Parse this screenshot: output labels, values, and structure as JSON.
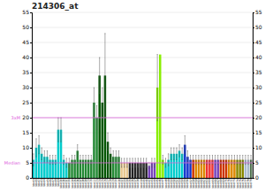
{
  "chart_data": {
    "type": "bar",
    "title": "214306_at",
    "categories": [
      "label0",
      "label1",
      "label2",
      "label3",
      "label4",
      "label5",
      "label6",
      "label7",
      "label8",
      "label9",
      "label10",
      "label11",
      "label12",
      "label13",
      "label14",
      "label15",
      "label16",
      "label17",
      "label18",
      "label19",
      "label20",
      "label21",
      "label22",
      "label23",
      "label24",
      "label25",
      "label26",
      "label27",
      "label28",
      "label29",
      "label30",
      "label31",
      "label32",
      "label33",
      "label34",
      "label35",
      "label36",
      "label37",
      "label38",
      "label39",
      "label40",
      "label41",
      "label42",
      "label43",
      "label44",
      "label45",
      "label46",
      "label47",
      "label48",
      "label49",
      "label50",
      "label51",
      "label52",
      "label53",
      "label54",
      "label55",
      "label56",
      "label57",
      "label58",
      "label59",
      "label60",
      "label61",
      "label62",
      "label63",
      "label64",
      "label65",
      "label66",
      "label67",
      "label68",
      "label69",
      "label70",
      "label71",
      "label72",
      "label73",
      "label74",
      "label75",
      "label76",
      "label77",
      "label78",
      "label79"
    ],
    "values": [
      6,
      10,
      11,
      8,
      7,
      7,
      6,
      6,
      6,
      16,
      16,
      6,
      5,
      5,
      6,
      6,
      9,
      6,
      6,
      6,
      6,
      6,
      25,
      20,
      34,
      25,
      34,
      12,
      8,
      7,
      7,
      7,
      5,
      5,
      5,
      5,
      5,
      5,
      5,
      5,
      5,
      5,
      4,
      5,
      5,
      30,
      41,
      6,
      5,
      6,
      8,
      8,
      8,
      9,
      8,
      11,
      7,
      6,
      6,
      6,
      6,
      6,
      6,
      6,
      6,
      6,
      6,
      6,
      6,
      6,
      6,
      6,
      6,
      6,
      6,
      6,
      6,
      6,
      6,
      6
    ],
    "errors": [
      2,
      3,
      3,
      2,
      2,
      2,
      1.5,
      1.5,
      1.5,
      4,
      4,
      1.5,
      1.5,
      1.5,
      1.5,
      1.5,
      2,
      1.5,
      1.5,
      1.5,
      1.5,
      1.5,
      5,
      4,
      6,
      5,
      14,
      3,
      2,
      2,
      2,
      2,
      1.5,
      1.5,
      1.5,
      1.5,
      1.5,
      1.5,
      1.5,
      1.5,
      1.5,
      1.5,
      1,
      1.5,
      1.5,
      11,
      0,
      1.5,
      1.5,
      2,
      2,
      2,
      2,
      2,
      2,
      3,
      2,
      1.5,
      1.5,
      1.5,
      1.5,
      1.5,
      1.5,
      1.5,
      1.5,
      1.5,
      1.5,
      1.5,
      1.5,
      1.5,
      1.5,
      1.5,
      1.5,
      1.5,
      1.5,
      1.5,
      1.5,
      1.5,
      1.5,
      1.5
    ],
    "colors": [
      "#00cccc",
      "#00cccc",
      "#00cccc",
      "#00cccc",
      "#00cccc",
      "#00cccc",
      "#00cccc",
      "#00cccc",
      "#00cccc",
      "#00cccc",
      "#00cccc",
      "#00cccc",
      "#00cccc",
      "#228833",
      "#228833",
      "#228833",
      "#228833",
      "#228833",
      "#228833",
      "#228833",
      "#228833",
      "#228833",
      "#228833",
      "#228833",
      "#005500",
      "#005500",
      "#005500",
      "#005500",
      "#005500",
      "#228833",
      "#228833",
      "#228833",
      "#e8c890",
      "#e8c890",
      "#e8c890",
      "#222222",
      "#222222",
      "#222222",
      "#222222",
      "#222222",
      "#222222",
      "#222222",
      "#7744bb",
      "#7744bb",
      "#7744bb",
      "#88ee00",
      "#88ee00",
      "#88ee00",
      "#00cccc",
      "#00cccc",
      "#00cccc",
      "#00cccc",
      "#00cccc",
      "#00cccc",
      "#00cccc",
      "#1133cc",
      "#1133cc",
      "#1133cc",
      "#cc3300",
      "#dd8800",
      "#dd8800",
      "#dd8800",
      "#dd8800",
      "#ee3333",
      "#ee3333",
      "#ee3333",
      "#7744bb",
      "#7744bb",
      "#cc3300",
      "#cc3300",
      "#cc3300",
      "#dd8800",
      "#dd8800",
      "#dd8800",
      "#888800",
      "#888800",
      "#888800",
      "#aabbcc",
      "#aabbcc",
      "#557755"
    ],
    "hlines": [
      {
        "label": "3xM",
        "value": 20,
        "color": "#dd66dd"
      },
      {
        "label": "Median",
        "value": 5,
        "color": "#dd66dd"
      }
    ],
    "ylim": [
      0,
      55
    ],
    "yticks": [
      0,
      5,
      10,
      15,
      20,
      25,
      30,
      35,
      40,
      45,
      50,
      55
    ],
    "y2lim": [
      0,
      55
    ],
    "y2ticks": [
      0,
      5,
      10,
      15,
      20,
      25,
      30,
      35,
      40,
      45,
      50,
      55
    ],
    "grid": true
  }
}
